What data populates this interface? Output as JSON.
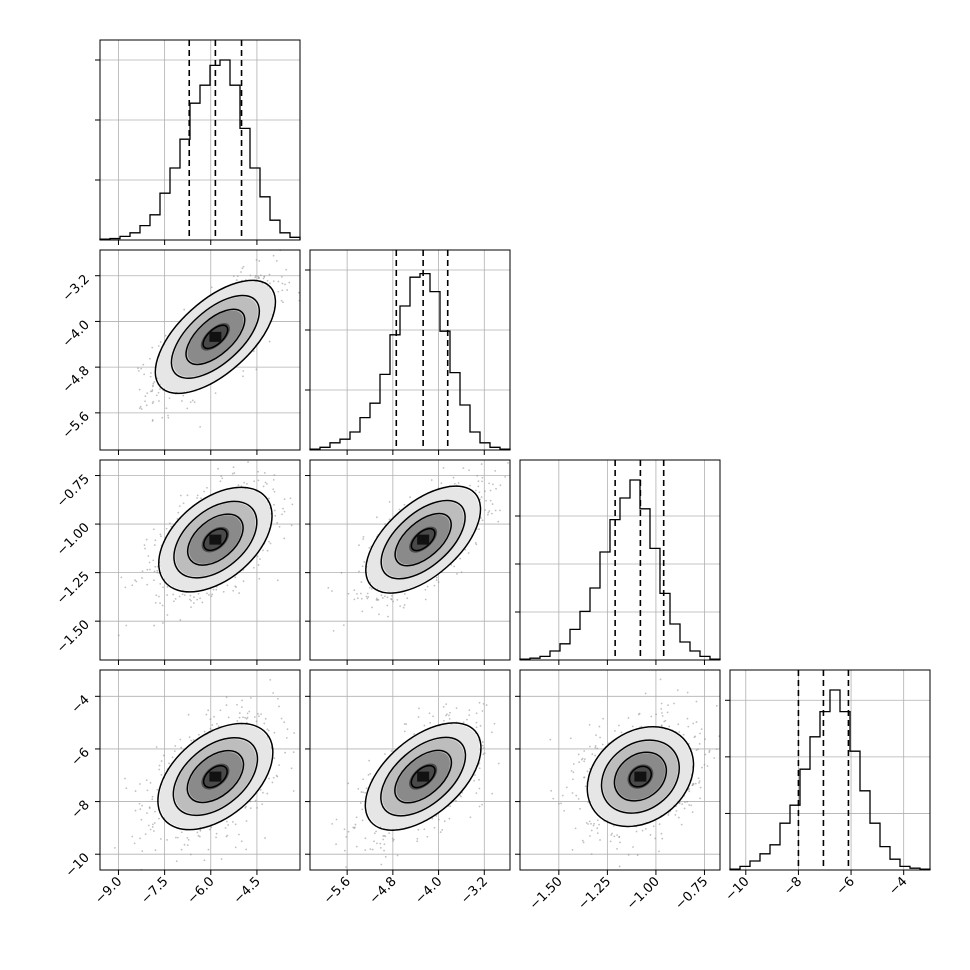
{
  "chart_data": {
    "type": "corner",
    "title": "",
    "parameters": [
      {
        "label": "",
        "range": [
          -9.6,
          -3.1
        ],
        "ticks": [
          -9.0,
          -7.5,
          -6.0,
          -4.5
        ],
        "tick_labels": [
          "−9.0",
          "−7.5",
          "−6.0",
          "−4.5"
        ],
        "quantiles": [
          -6.7,
          -5.85,
          -5.0
        ],
        "median": -5.85,
        "sigma": 0.85
      },
      {
        "label": "",
        "range": [
          -6.25,
          -2.75
        ],
        "ticks": [
          -5.6,
          -4.8,
          -4.0,
          -3.2
        ],
        "tick_labels": [
          "−5.6",
          "−4.8",
          "−4.0",
          "−3.2"
        ],
        "quantiles": [
          -4.74,
          -4.27,
          -3.84
        ],
        "median": -4.27,
        "sigma": 0.45
      },
      {
        "label": "",
        "range": [
          -1.7,
          -0.67
        ],
        "ticks": [
          -1.5,
          -1.25,
          -1.0,
          -0.75
        ],
        "tick_labels": [
          "−1.50",
          "−1.25",
          "−1.00",
          "−0.75"
        ],
        "quantiles": [
          -1.21,
          -1.08,
          -0.96
        ],
        "median": -1.08,
        "sigma": 0.125
      },
      {
        "label": "",
        "range": [
          -10.6,
          -3.0
        ],
        "ticks": [
          -10,
          -8,
          -6,
          -4
        ],
        "tick_labels": [
          "−10",
          "−8",
          "−6",
          "−4"
        ],
        "quantiles": [
          -8.0,
          -7.05,
          -6.1
        ],
        "median": -7.05,
        "sigma": 0.95
      }
    ],
    "histograms": [
      {
        "bin_start": -9.6,
        "bin_width": 0.325,
        "counts": [
          0.005,
          0.008,
          0.02,
          0.04,
          0.08,
          0.14,
          0.26,
          0.4,
          0.56,
          0.76,
          0.86,
          0.97,
          1.0,
          0.86,
          0.62,
          0.4,
          0.24,
          0.11,
          0.04,
          0.015
        ],
        "max": 1.0,
        "yticks": [
          0.35,
          0.7,
          1.05
        ]
      },
      {
        "bin_start": -6.25,
        "bin_width": 0.175,
        "counts": [
          0.005,
          0.015,
          0.04,
          0.06,
          0.1,
          0.18,
          0.26,
          0.42,
          0.64,
          0.8,
          0.96,
          0.98,
          0.88,
          0.66,
          0.43,
          0.25,
          0.1,
          0.04,
          0.015,
          0.005
        ],
        "max": 1.0,
        "yticks": [
          0.35,
          0.7,
          1.05
        ]
      },
      {
        "bin_start": -1.7,
        "bin_width": 0.0515,
        "counts": [
          0.005,
          0.01,
          0.02,
          0.05,
          0.09,
          0.17,
          0.27,
          0.4,
          0.6,
          0.78,
          0.9,
          1.0,
          0.84,
          0.62,
          0.37,
          0.2,
          0.1,
          0.05,
          0.02,
          0.005
        ],
        "max": 1.0,
        "yticks": [
          0.28,
          0.56,
          0.84
        ]
      },
      {
        "bin_start": -10.6,
        "bin_width": 0.38,
        "counts": [
          0.005,
          0.02,
          0.05,
          0.09,
          0.14,
          0.26,
          0.36,
          0.56,
          0.74,
          0.88,
          1.0,
          0.88,
          0.66,
          0.44,
          0.26,
          0.13,
          0.06,
          0.02,
          0.01,
          0.005
        ],
        "max": 1.0,
        "yticks": [
          0.33,
          0.66,
          0.99
        ]
      }
    ],
    "correlations": {
      "1-0": 0.72,
      "2-0": 0.5,
      "2-1": 0.65,
      "3-0": 0.5,
      "3-1": 0.6,
      "3-2": 0.25
    },
    "grid": true,
    "scatter_color": "#8c8c8c",
    "line_color": "#000000"
  }
}
